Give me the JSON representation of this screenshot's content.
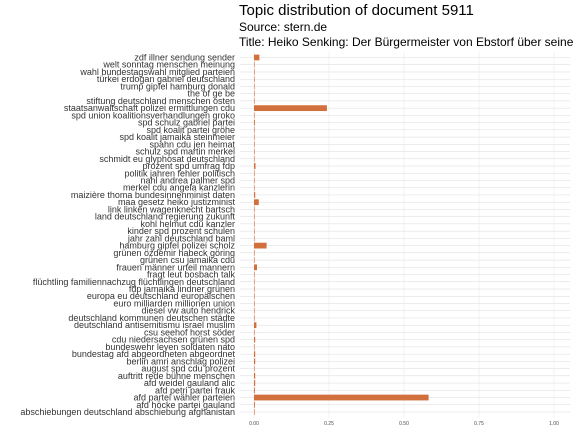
{
  "chart_data": {
    "type": "bar",
    "orientation": "horizontal",
    "title": "Topic distribution of document 5911",
    "subtitle_lines": [
      "Source: stern.de",
      "Title: Heiko Senking: Der Bürgermeister von Ebstorf über seine"
    ],
    "xlabel": "",
    "ylabel": "",
    "xlim": [
      0,
      1
    ],
    "x_ticks": [
      "0.00",
      "0.25",
      "0.50",
      "0.75",
      "1.00"
    ],
    "grid": true,
    "bar_color": "#D2703D",
    "categories": [
      "zdf illner sendung sender",
      "welt sonntag menschen meinung",
      "wahl bundestagswahl mitglied parteien",
      "türkei erdogan gabriel deutschland",
      "trump gipfel hamburg donald",
      "the of ge be",
      "stiftung deutschland menschen osten",
      "staatsanwaltschaft polizei ermittlungen cdu",
      "spd union koalitionsverhandlungen groko",
      "spd schulz gabriel partei",
      "spd koalit partei gröhe",
      "spd koalit jamaika steinmeier",
      "spahn cdu jen heimat",
      "schulz spd martin merkel",
      "schmidt eu glyphosat deutschland",
      "prozent spd umfrag fdp",
      "politik jahren fehler politisch",
      "nahl andrea palmer spd",
      "merkel cdu angela kanzlerin",
      "maizière thoma bundesinnenminist daten",
      "maa gesetz heiko justizminist",
      "link linken wagenknecht bartsch",
      "land deutschland regierung zukunft",
      "kohl helmut cdu kanzler",
      "kinder spd prozent schulen",
      "jahr zahl deutschland baml",
      "hamburg gipfel polizei scholz",
      "grünen özdemir habeck göring",
      "grünen csu jamaika cdu",
      "frauen männer urteil mannern",
      "fragt leut bosbach talk",
      "flüchtling familiennachzug flüchtlingen deutschland",
      "fdp jamaika lindner grünen",
      "europa eu deutschland europäischen",
      "euro milliarden millionen union",
      "diesel vw auto hendrick",
      "deutschland kommunen deutschen städte",
      "deutschland antisemitismu israel muslim",
      "csu seehof horst söder",
      "cdu niedersachsen grünen spd",
      "bundeswehr leyen soldaten nato",
      "bundestag afd abgeordneten abgeordnet",
      "berlin amri anschlag polizei",
      "august spd cdu prozent",
      "auftritt rede bühne menschen",
      "afd weidel gauland alic",
      "afd petri partei frauk",
      "afd partei wähler parteien",
      "afd höcke partei gauland",
      "abschiebungen deutschland abschiebung afghanistan"
    ],
    "values": [
      0.018,
      0.002,
      0.002,
      0.002,
      0.002,
      0.002,
      0.002,
      0.243,
      0.002,
      0.003,
      0.002,
      0.002,
      0.002,
      0.002,
      0.002,
      0.005,
      0.002,
      0.002,
      0.002,
      0.004,
      0.016,
      0.002,
      0.002,
      0.002,
      0.002,
      0.002,
      0.042,
      0.002,
      0.002,
      0.01,
      0.002,
      0.002,
      0.002,
      0.002,
      0.002,
      0.002,
      0.002,
      0.008,
      0.002,
      0.004,
      0.002,
      0.004,
      0.004,
      0.002,
      0.004,
      0.004,
      0.003,
      0.582,
      0.003,
      0.002
    ]
  }
}
